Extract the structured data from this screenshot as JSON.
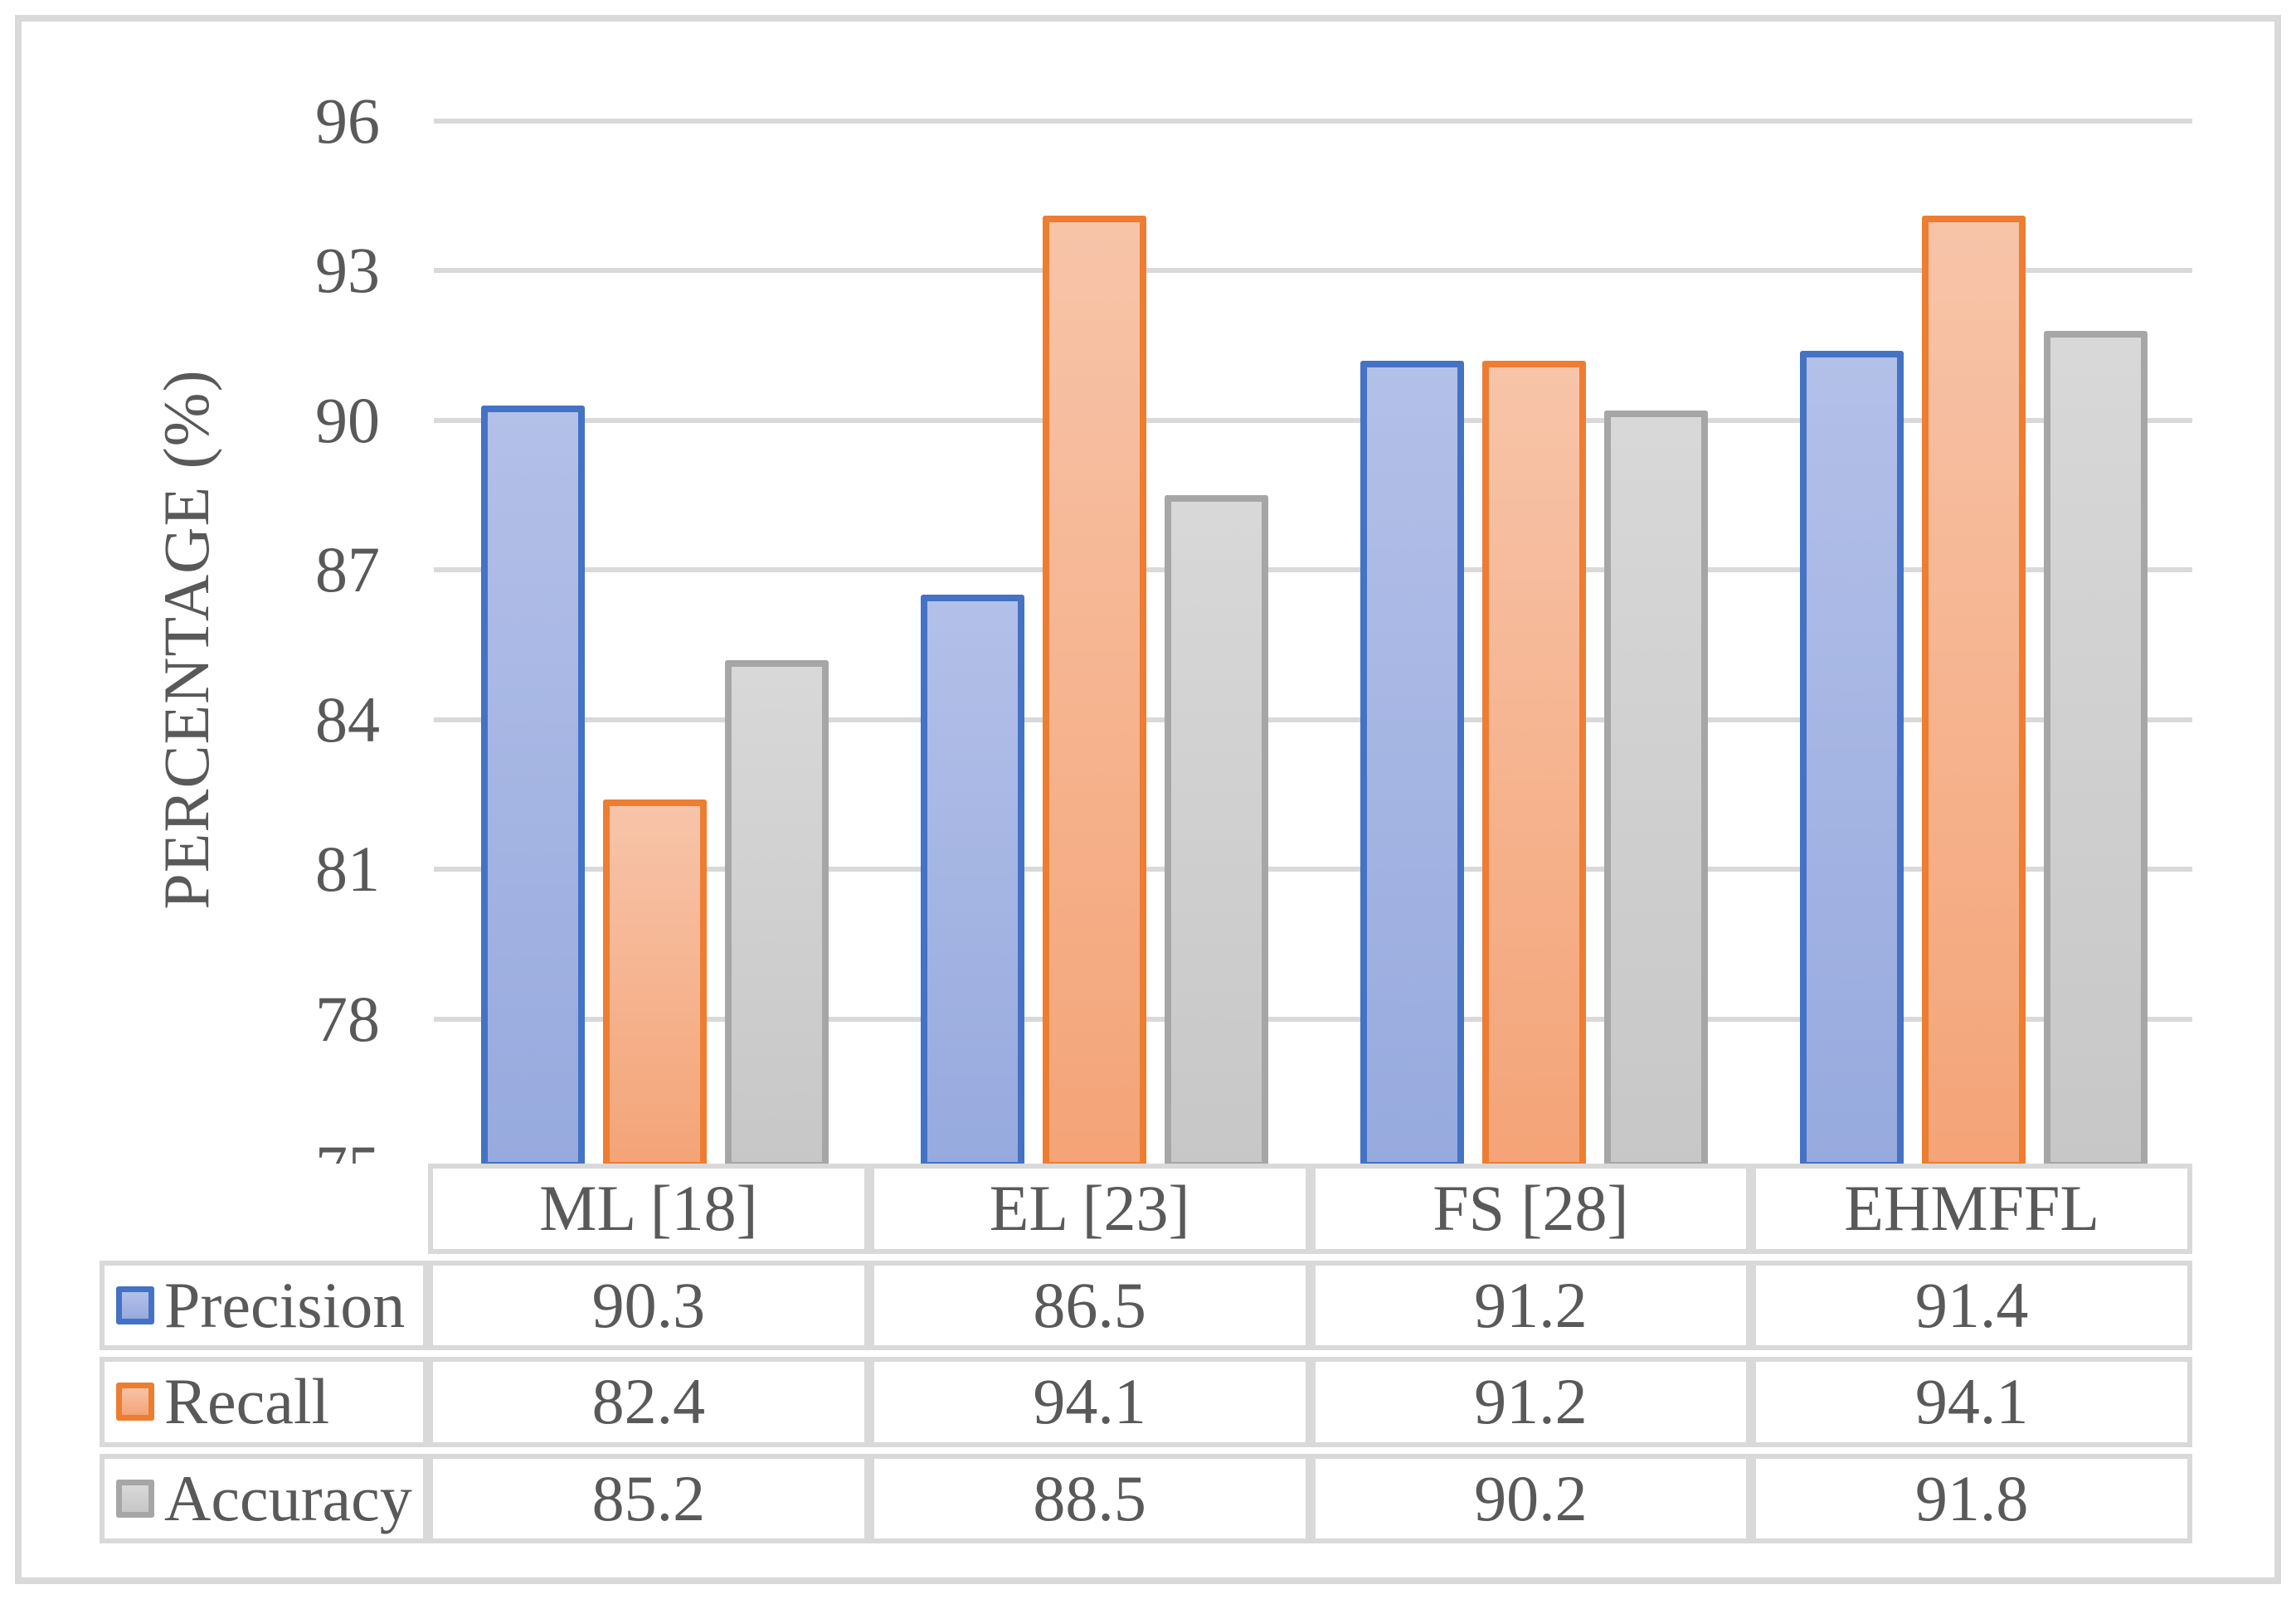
{
  "figure": {
    "background": "#ffffff",
    "border_color": "#d9d9d9",
    "text_color": "#595959",
    "gridline_color": "#d9d9d9"
  },
  "chart_data": {
    "type": "bar",
    "title": "",
    "xlabel": "",
    "ylabel": "PERCENTAGE (%)",
    "categories": [
      "ML [18]",
      "EL [23]",
      "FS [28]",
      "EHMFFL"
    ],
    "series": [
      {
        "name": "Precision",
        "values": [
          90.3,
          86.5,
          91.2,
          91.4
        ],
        "border_color": "#4472c4",
        "fill_top": "#b3c0e8",
        "fill_bottom": "#97aade"
      },
      {
        "name": "Recall",
        "values": [
          82.4,
          94.1,
          91.2,
          94.1
        ],
        "border_color": "#ed7d31",
        "fill_top": "#f7c4a9",
        "fill_bottom": "#f4a477"
      },
      {
        "name": "Accuracy",
        "values": [
          85.2,
          88.5,
          90.2,
          91.8
        ],
        "border_color": "#a6a6a6",
        "fill_top": "#d8d8d8",
        "fill_bottom": "#c7c7c7"
      }
    ],
    "ylim": [
      75,
      96
    ],
    "yticks": [
      96,
      93,
      90,
      87,
      84,
      81,
      78,
      75
    ],
    "grid": true,
    "legend_position": "table-left",
    "data_table_shown": true
  }
}
